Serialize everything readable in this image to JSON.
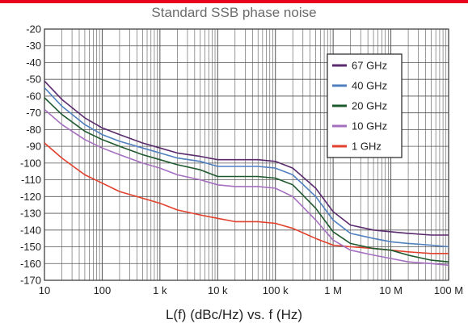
{
  "accent_color": "#e8001c",
  "chart_data": {
    "type": "line",
    "title": "Standard SSB phase noise",
    "xlabel": "L(f) (dBc/Hz) vs. f (Hz)",
    "ylabel": "",
    "x_scale": "log",
    "xlim": [
      10,
      100000000
    ],
    "ylim": [
      -170,
      -20
    ],
    "grid": true,
    "legend_position": "top-right",
    "x_ticks": [
      {
        "value": 10,
        "label": "10"
      },
      {
        "value": 100,
        "label": "100"
      },
      {
        "value": 1000,
        "label": "1 k"
      },
      {
        "value": 10000,
        "label": "10 k"
      },
      {
        "value": 100000,
        "label": "100 k"
      },
      {
        "value": 1000000,
        "label": "1 M"
      },
      {
        "value": 10000000,
        "label": "10 M"
      },
      {
        "value": 100000000,
        "label": "100 M"
      }
    ],
    "y_ticks": [
      -20,
      -30,
      -40,
      -50,
      -60,
      -70,
      -80,
      -90,
      -100,
      -110,
      -120,
      -130,
      -140,
      -150,
      -160,
      -170
    ],
    "series": [
      {
        "name": "67 GHz",
        "color": "#5a2a6e",
        "points": [
          [
            10,
            -51
          ],
          [
            20,
            -62
          ],
          [
            50,
            -73
          ],
          [
            100,
            -79
          ],
          [
            200,
            -83
          ],
          [
            500,
            -88
          ],
          [
            1000,
            -91
          ],
          [
            2000,
            -94
          ],
          [
            5000,
            -96
          ],
          [
            10000,
            -98
          ],
          [
            20000,
            -98
          ],
          [
            50000,
            -98
          ],
          [
            100000,
            -99
          ],
          [
            200000,
            -103
          ],
          [
            500000,
            -115
          ],
          [
            1000000,
            -129
          ],
          [
            2000000,
            -137
          ],
          [
            5000000,
            -140
          ],
          [
            10000000,
            -141
          ],
          [
            20000000,
            -142
          ],
          [
            50000000,
            -143
          ],
          [
            100000000,
            -143
          ]
        ]
      },
      {
        "name": "40 GHz",
        "color": "#4f7fbf",
        "points": [
          [
            10,
            -55
          ],
          [
            20,
            -66
          ],
          [
            50,
            -77
          ],
          [
            100,
            -83
          ],
          [
            200,
            -87
          ],
          [
            500,
            -91
          ],
          [
            1000,
            -94
          ],
          [
            2000,
            -97
          ],
          [
            5000,
            -99
          ],
          [
            10000,
            -102
          ],
          [
            20000,
            -102
          ],
          [
            50000,
            -102
          ],
          [
            100000,
            -103
          ],
          [
            200000,
            -107
          ],
          [
            500000,
            -120
          ],
          [
            1000000,
            -134
          ],
          [
            2000000,
            -142
          ],
          [
            5000000,
            -145
          ],
          [
            10000000,
            -147
          ],
          [
            20000000,
            -148
          ],
          [
            50000000,
            -149
          ],
          [
            100000000,
            -150
          ]
        ]
      },
      {
        "name": "20 GHz",
        "color": "#1f5a2e",
        "points": [
          [
            10,
            -61
          ],
          [
            20,
            -71
          ],
          [
            50,
            -81
          ],
          [
            100,
            -86
          ],
          [
            200,
            -90
          ],
          [
            500,
            -95
          ],
          [
            1000,
            -98
          ],
          [
            2000,
            -101
          ],
          [
            5000,
            -104
          ],
          [
            10000,
            -108
          ],
          [
            20000,
            -108
          ],
          [
            50000,
            -108
          ],
          [
            100000,
            -109
          ],
          [
            200000,
            -113
          ],
          [
            500000,
            -127
          ],
          [
            1000000,
            -141
          ],
          [
            2000000,
            -148
          ],
          [
            5000000,
            -151
          ],
          [
            10000000,
            -152
          ],
          [
            20000000,
            -155
          ],
          [
            50000000,
            -158
          ],
          [
            100000000,
            -159
          ]
        ]
      },
      {
        "name": "10 GHz",
        "color": "#a56fc0",
        "points": [
          [
            10,
            -68
          ],
          [
            20,
            -77
          ],
          [
            50,
            -86
          ],
          [
            100,
            -91
          ],
          [
            200,
            -95
          ],
          [
            500,
            -100
          ],
          [
            1000,
            -103
          ],
          [
            2000,
            -107
          ],
          [
            5000,
            -110
          ],
          [
            10000,
            -113
          ],
          [
            20000,
            -114
          ],
          [
            50000,
            -114
          ],
          [
            100000,
            -115
          ],
          [
            200000,
            -120
          ],
          [
            500000,
            -134
          ],
          [
            1000000,
            -146
          ],
          [
            2000000,
            -152
          ],
          [
            5000000,
            -155
          ],
          [
            10000000,
            -157
          ],
          [
            20000000,
            -159
          ],
          [
            50000000,
            -160
          ],
          [
            100000000,
            -161
          ]
        ]
      },
      {
        "name": "1 GHz",
        "color": "#e2402c",
        "points": [
          [
            10,
            -88
          ],
          [
            20,
            -97
          ],
          [
            50,
            -107
          ],
          [
            100,
            -112
          ],
          [
            200,
            -117
          ],
          [
            500,
            -121
          ],
          [
            1000,
            -124
          ],
          [
            2000,
            -128
          ],
          [
            5000,
            -131
          ],
          [
            10000,
            -133
          ],
          [
            20000,
            -135
          ],
          [
            50000,
            -135
          ],
          [
            100000,
            -136
          ],
          [
            200000,
            -139
          ],
          [
            500000,
            -145
          ],
          [
            1000000,
            -149
          ],
          [
            2000000,
            -150
          ],
          [
            5000000,
            -151
          ],
          [
            10000000,
            -152
          ],
          [
            20000000,
            -153
          ],
          [
            50000000,
            -154
          ],
          [
            100000000,
            -154
          ]
        ]
      }
    ]
  }
}
